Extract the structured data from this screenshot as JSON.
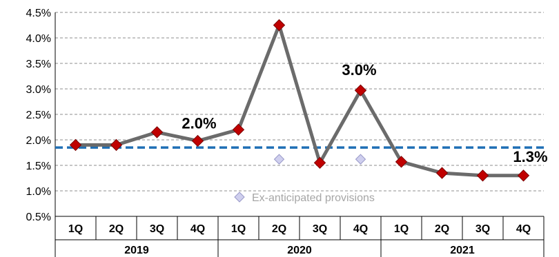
{
  "chart_data": {
    "type": "line",
    "title": "",
    "xlabel": "",
    "ylabel": "",
    "ylim": [
      0.5,
      4.5
    ],
    "yticks": [
      "0.5%",
      "1.0%",
      "1.5%",
      "2.0%",
      "2.5%",
      "3.0%",
      "3.5%",
      "4.0%",
      "4.5%"
    ],
    "ytick_values": [
      0.5,
      1.0,
      1.5,
      2.0,
      2.5,
      3.0,
      3.5,
      4.0,
      4.5
    ],
    "grid": true,
    "categories": [
      "1Q",
      "2Q",
      "3Q",
      "4Q",
      "1Q",
      "2Q",
      "3Q",
      "4Q",
      "1Q",
      "2Q",
      "3Q",
      "4Q"
    ],
    "groups": [
      {
        "label": "2019",
        "span": 4
      },
      {
        "label": "2020",
        "span": 4
      },
      {
        "label": "2021",
        "span": 4
      }
    ],
    "series": [
      {
        "values": [
          1.9,
          1.9,
          2.15,
          1.98,
          2.2,
          4.25,
          1.55,
          2.97,
          1.57,
          1.35,
          1.3,
          1.3
        ],
        "line_color": "#6b6b6b",
        "marker_color": "#c00000"
      },
      {
        "name": "Ex-anticipated provisions",
        "type": "scatter",
        "x_index": [
          5,
          7
        ],
        "values": [
          1.62,
          1.62
        ],
        "marker_color": "#cfcfee"
      }
    ],
    "reference_line": {
      "value": 1.85,
      "color": "#1f6fb5",
      "style": "dashed"
    },
    "annotations": [
      {
        "text": "2.0%",
        "index": 3
      },
      {
        "text": "3.0%",
        "index": 7
      },
      {
        "text": "1.3%",
        "index": 11
      }
    ],
    "legend_position": "bottom-center"
  }
}
